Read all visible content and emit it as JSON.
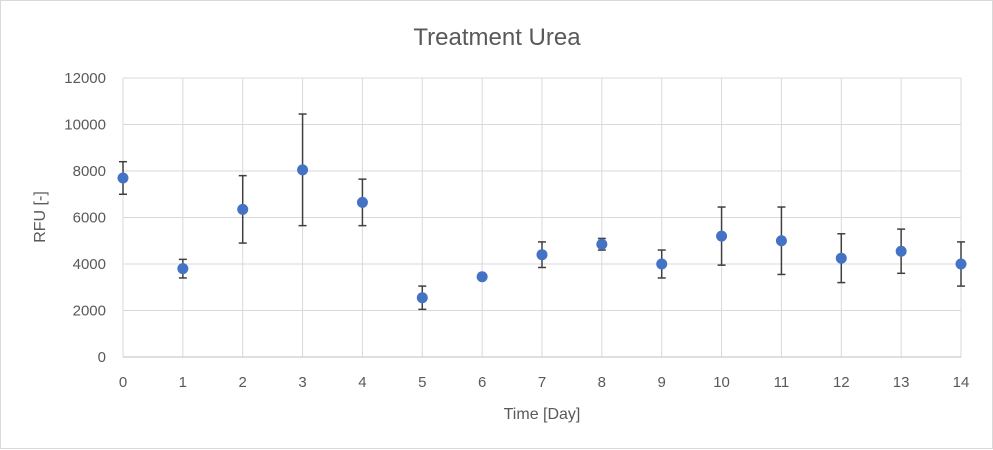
{
  "chart_data": {
    "type": "scatter",
    "title": "Treatment Urea",
    "xlabel": "Time [Day]",
    "ylabel": "RFU [-]",
    "xlim": [
      0,
      14
    ],
    "ylim": [
      0,
      12000
    ],
    "x_ticks": [
      0,
      1,
      2,
      3,
      4,
      5,
      6,
      7,
      8,
      9,
      10,
      11,
      12,
      13,
      14
    ],
    "y_ticks": [
      0,
      2000,
      4000,
      6000,
      8000,
      10000,
      12000
    ],
    "grid": true,
    "legend": "none",
    "series": [
      {
        "color": "#4472c4",
        "x": [
          0,
          1,
          2,
          3,
          4,
          5,
          6,
          7,
          8,
          9,
          10,
          11,
          12,
          13,
          14
        ],
        "y": [
          7700,
          3800,
          6350,
          8050,
          6650,
          2550,
          3450,
          4400,
          4850,
          4000,
          5200,
          5000,
          4250,
          4550,
          4000
        ],
        "error": [
          700,
          400,
          1450,
          2400,
          1000,
          500,
          0,
          550,
          250,
          600,
          1250,
          1450,
          1050,
          950,
          950
        ]
      }
    ]
  }
}
